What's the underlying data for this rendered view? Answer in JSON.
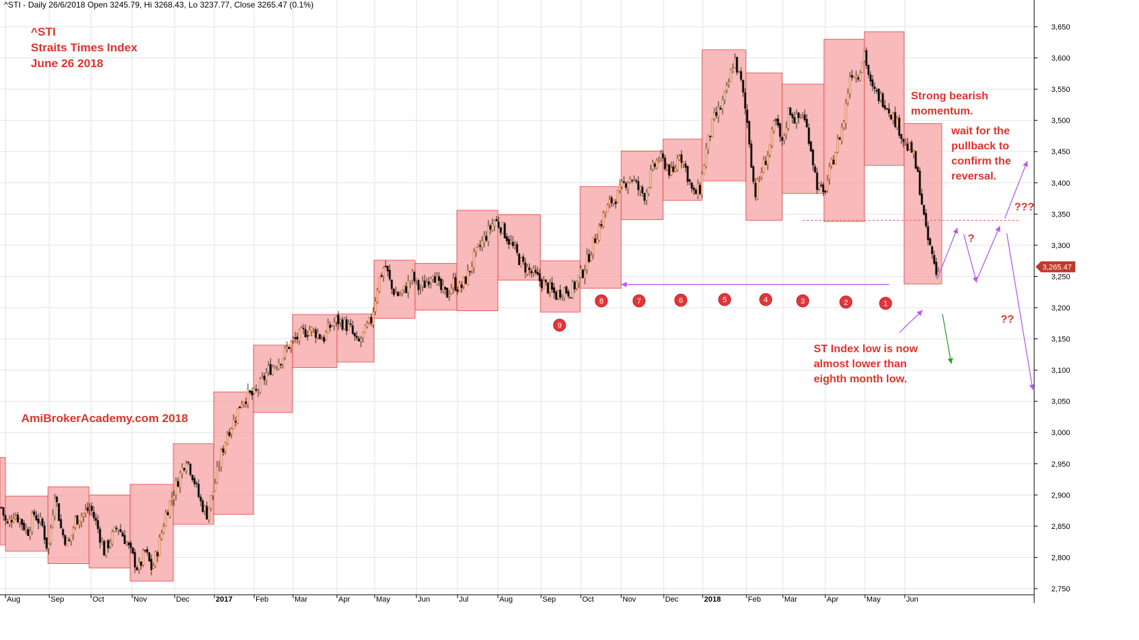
{
  "header": {
    "text": "^STI - Daily 26/6/2018 Open 3245.79, Hi 3268.43, Lo 3237.77, Close 3265.47 (0.1%)"
  },
  "chart_title": {
    "line1": "^STI",
    "line2": "Straits Times Index",
    "line3": "June 26 2018"
  },
  "watermark": "AmiBrokerAcademy.com  2018",
  "annotations": {
    "bearish": [
      "Strong bearish",
      "momentum."
    ],
    "pullback": [
      "wait for the",
      "pullback to",
      "confirm the",
      "reversal."
    ],
    "low_note": [
      "ST Index low is now",
      "almost lower than",
      "eighth month low."
    ],
    "q1": "?",
    "q2": "??",
    "q3": "???"
  },
  "price_label": "3,265.47",
  "colors": {
    "box_fill": "#f5a3a3",
    "box_stroke": "#e04444",
    "annotation_red": "#e0322b",
    "arrow_purple": "#b65cf0",
    "arrow_green": "#2e9e2e",
    "candle_up": "#c8641e",
    "candle_down": "#000000",
    "price_tag": "#c0392b"
  },
  "chart_data": {
    "type": "candlestick",
    "ylim": [
      2740,
      3660
    ],
    "yticks": [
      2750,
      2800,
      2850,
      2900,
      2950,
      3000,
      3050,
      3100,
      3150,
      3200,
      3250,
      3300,
      3350,
      3400,
      3450,
      3500,
      3550,
      3600,
      3650
    ],
    "ytick_labels": [
      "2,750",
      "2,800",
      "2,850",
      "2,900",
      "2,950",
      "3,000",
      "3,050",
      "3,100",
      "3,150",
      "3,200",
      "3,250",
      "3,300",
      "3,350",
      "3,400",
      "3,450",
      "3,500",
      "3,550",
      "3,600",
      "3,650"
    ],
    "xlim": [
      0,
      1505
    ],
    "xticks": [
      {
        "label": "Aug",
        "x": 8,
        "bold": false
      },
      {
        "label": "Sep",
        "x": 72,
        "bold": false
      },
      {
        "label": "Oct",
        "x": 133,
        "bold": false
      },
      {
        "label": "Nov",
        "x": 193,
        "bold": false
      },
      {
        "label": "Dec",
        "x": 255,
        "bold": false
      },
      {
        "label": "2017",
        "x": 313,
        "bold": true
      },
      {
        "label": "Feb",
        "x": 371,
        "bold": false
      },
      {
        "label": "Mar",
        "x": 428,
        "bold": false
      },
      {
        "label": "Apr",
        "x": 492,
        "bold": false
      },
      {
        "label": "May",
        "x": 547,
        "bold": false
      },
      {
        "label": "Jun",
        "x": 608,
        "bold": false
      },
      {
        "label": "Jul",
        "x": 668,
        "bold": false
      },
      {
        "label": "Aug",
        "x": 727,
        "bold": false
      },
      {
        "label": "Sep",
        "x": 790,
        "bold": false
      },
      {
        "label": "Oct",
        "x": 848,
        "bold": false
      },
      {
        "label": "Nov",
        "x": 907,
        "bold": false
      },
      {
        "label": "Dec",
        "x": 969,
        "bold": false
      },
      {
        "label": "2018",
        "x": 1026,
        "bold": true
      },
      {
        "label": "Feb",
        "x": 1090,
        "bold": false
      },
      {
        "label": "Mar",
        "x": 1143,
        "bold": false
      },
      {
        "label": "Apr",
        "x": 1205,
        "bold": false
      },
      {
        "label": "May",
        "x": 1263,
        "bold": false
      },
      {
        "label": "Jun",
        "x": 1321,
        "bold": false
      }
    ],
    "monthly_boxes": [
      {
        "x0": 0,
        "x1": 8,
        "high": 2960,
        "low": 2820
      },
      {
        "x0": 8,
        "x1": 70,
        "high": 2898,
        "low": 2810
      },
      {
        "x0": 70,
        "x1": 130,
        "high": 2913,
        "low": 2790
      },
      {
        "x0": 130,
        "x1": 190,
        "high": 2900,
        "low": 2783
      },
      {
        "x0": 190,
        "x1": 253,
        "high": 2917,
        "low": 2762
      },
      {
        "x0": 253,
        "x1": 312,
        "high": 2982,
        "low": 2853
      },
      {
        "x0": 312,
        "x1": 370,
        "high": 3065,
        "low": 2869
      },
      {
        "x0": 370,
        "x1": 427,
        "high": 3140,
        "low": 3032
      },
      {
        "x0": 427,
        "x1": 492,
        "high": 3189,
        "low": 3104
      },
      {
        "x0": 492,
        "x1": 546,
        "high": 3190,
        "low": 3113
      },
      {
        "x0": 546,
        "x1": 606,
        "high": 3276,
        "low": 3183
      },
      {
        "x0": 606,
        "x1": 667,
        "high": 3271,
        "low": 3196
      },
      {
        "x0": 667,
        "x1": 727,
        "high": 3356,
        "low": 3195
      },
      {
        "x0": 727,
        "x1": 789,
        "high": 3349,
        "low": 3244
      },
      {
        "x0": 789,
        "x1": 847,
        "high": 3275,
        "low": 3193
      },
      {
        "x0": 847,
        "x1": 907,
        "high": 3394,
        "low": 3231
      },
      {
        "x0": 907,
        "x1": 968,
        "high": 3451,
        "low": 3341
      },
      {
        "x0": 968,
        "x1": 1025,
        "high": 3470,
        "low": 3372
      },
      {
        "x0": 1025,
        "x1": 1089,
        "high": 3613,
        "low": 3403
      },
      {
        "x0": 1089,
        "x1": 1142,
        "high": 3576,
        "low": 3340
      },
      {
        "x0": 1142,
        "x1": 1203,
        "high": 3558,
        "low": 3383
      },
      {
        "x0": 1203,
        "x1": 1262,
        "high": 3630,
        "low": 3338
      },
      {
        "x0": 1262,
        "x1": 1320,
        "high": 3642,
        "low": 3428
      },
      {
        "x0": 1320,
        "x1": 1375,
        "high": 3495,
        "low": 3238
      }
    ],
    "price_path": [
      [
        2,
        2880
      ],
      [
        10,
        2850
      ],
      [
        20,
        2870
      ],
      [
        30,
        2860
      ],
      [
        40,
        2840
      ],
      [
        50,
        2870
      ],
      [
        62,
        2850
      ],
      [
        70,
        2810
      ],
      [
        80,
        2905
      ],
      [
        90,
        2840
      ],
      [
        100,
        2820
      ],
      [
        110,
        2860
      ],
      [
        122,
        2870
      ],
      [
        132,
        2880
      ],
      [
        142,
        2850
      ],
      [
        152,
        2810
      ],
      [
        162,
        2830
      ],
      [
        172,
        2850
      ],
      [
        182,
        2830
      ],
      [
        192,
        2805
      ],
      [
        202,
        2780
      ],
      [
        212,
        2810
      ],
      [
        222,
        2780
      ],
      [
        232,
        2820
      ],
      [
        242,
        2870
      ],
      [
        252,
        2900
      ],
      [
        262,
        2930
      ],
      [
        272,
        2960
      ],
      [
        282,
        2930
      ],
      [
        292,
        2890
      ],
      [
        302,
        2870
      ],
      [
        312,
        2910
      ],
      [
        322,
        2960
      ],
      [
        332,
        3000
      ],
      [
        342,
        3020
      ],
      [
        352,
        3050
      ],
      [
        362,
        3060
      ],
      [
        372,
        3060
      ],
      [
        382,
        3080
      ],
      [
        392,
        3100
      ],
      [
        402,
        3110
      ],
      [
        412,
        3120
      ],
      [
        422,
        3140
      ],
      [
        432,
        3150
      ],
      [
        442,
        3160
      ],
      [
        452,
        3165
      ],
      [
        462,
        3160
      ],
      [
        472,
        3150
      ],
      [
        482,
        3170
      ],
      [
        492,
        3180
      ],
      [
        502,
        3175
      ],
      [
        512,
        3165
      ],
      [
        522,
        3140
      ],
      [
        532,
        3160
      ],
      [
        542,
        3180
      ],
      [
        552,
        3240
      ],
      [
        562,
        3270
      ],
      [
        572,
        3230
      ],
      [
        582,
        3220
      ],
      [
        592,
        3230
      ],
      [
        602,
        3250
      ],
      [
        612,
        3230
      ],
      [
        622,
        3240
      ],
      [
        632,
        3260
      ],
      [
        642,
        3230
      ],
      [
        652,
        3220
      ],
      [
        662,
        3240
      ],
      [
        672,
        3230
      ],
      [
        682,
        3250
      ],
      [
        692,
        3280
      ],
      [
        702,
        3300
      ],
      [
        712,
        3320
      ],
      [
        722,
        3340
      ],
      [
        732,
        3330
      ],
      [
        742,
        3310
      ],
      [
        752,
        3290
      ],
      [
        762,
        3270
      ],
      [
        772,
        3260
      ],
      [
        782,
        3250
      ],
      [
        792,
        3240
      ],
      [
        802,
        3230
      ],
      [
        812,
        3220
      ],
      [
        822,
        3230
      ],
      [
        832,
        3225
      ],
      [
        842,
        3240
      ],
      [
        852,
        3260
      ],
      [
        862,
        3290
      ],
      [
        872,
        3320
      ],
      [
        882,
        3350
      ],
      [
        892,
        3370
      ],
      [
        902,
        3380
      ],
      [
        912,
        3400
      ],
      [
        922,
        3410
      ],
      [
        932,
        3390
      ],
      [
        942,
        3380
      ],
      [
        952,
        3420
      ],
      [
        962,
        3440
      ],
      [
        972,
        3430
      ],
      [
        982,
        3410
      ],
      [
        992,
        3450
      ],
      [
        1002,
        3420
      ],
      [
        1012,
        3380
      ],
      [
        1022,
        3390
      ],
      [
        1032,
        3460
      ],
      [
        1042,
        3500
      ],
      [
        1052,
        3520
      ],
      [
        1062,
        3550
      ],
      [
        1072,
        3600
      ],
      [
        1082,
        3560
      ],
      [
        1092,
        3490
      ],
      [
        1102,
        3380
      ],
      [
        1112,
        3420
      ],
      [
        1122,
        3450
      ],
      [
        1132,
        3500
      ],
      [
        1142,
        3460
      ],
      [
        1152,
        3520
      ],
      [
        1162,
        3500
      ],
      [
        1172,
        3510
      ],
      [
        1182,
        3470
      ],
      [
        1192,
        3400
      ],
      [
        1202,
        3380
      ],
      [
        1212,
        3420
      ],
      [
        1222,
        3460
      ],
      [
        1232,
        3500
      ],
      [
        1242,
        3580
      ],
      [
        1252,
        3570
      ],
      [
        1262,
        3610
      ],
      [
        1272,
        3550
      ],
      [
        1282,
        3540
      ],
      [
        1292,
        3530
      ],
      [
        1302,
        3510
      ],
      [
        1312,
        3490
      ],
      [
        1322,
        3460
      ],
      [
        1332,
        3450
      ],
      [
        1342,
        3400
      ],
      [
        1352,
        3320
      ],
      [
        1362,
        3280
      ],
      [
        1368,
        3250
      ],
      [
        1372,
        3265
      ]
    ],
    "numbered_circles": [
      {
        "label": "1",
        "x": 1293,
        "y": 3207
      },
      {
        "label": "2",
        "x": 1235,
        "y": 3209
      },
      {
        "label": "3",
        "x": 1172,
        "y": 3211
      },
      {
        "label": "4",
        "x": 1118,
        "y": 3213
      },
      {
        "label": "5",
        "x": 1058,
        "y": 3213
      },
      {
        "label": "6",
        "x": 994,
        "y": 3212
      },
      {
        "label": "7",
        "x": 933,
        "y": 3211
      },
      {
        "label": "8",
        "x": 878,
        "y": 3211
      },
      {
        "label": "9",
        "x": 817,
        "y": 3172
      }
    ],
    "support_line": {
      "x0": 907,
      "x1": 1298,
      "y": 3237
    },
    "dashed_line": {
      "x0": 1172,
      "x1": 1488,
      "y": 3340
    },
    "purple_arrows": [
      {
        "from": [
          1368,
          3245
        ],
        "to": [
          1398,
          3328
        ]
      },
      {
        "from": [
          1407,
          3318
        ],
        "to": [
          1426,
          3240
        ]
      },
      {
        "from": [
          1426,
          3244
        ],
        "to": [
          1460,
          3331
        ]
      },
      {
        "from": [
          1467,
          3343
        ],
        "to": [
          1500,
          3435
        ]
      },
      {
        "from": [
          1470,
          3319
        ],
        "to": [
          1508,
          3068
        ]
      },
      {
        "from": [
          1313,
          3160
        ],
        "to": [
          1347,
          3196
        ]
      }
    ],
    "green_arrows": [
      {
        "from": [
          1376,
          3190
        ],
        "to": [
          1389,
          3110
        ]
      }
    ]
  }
}
